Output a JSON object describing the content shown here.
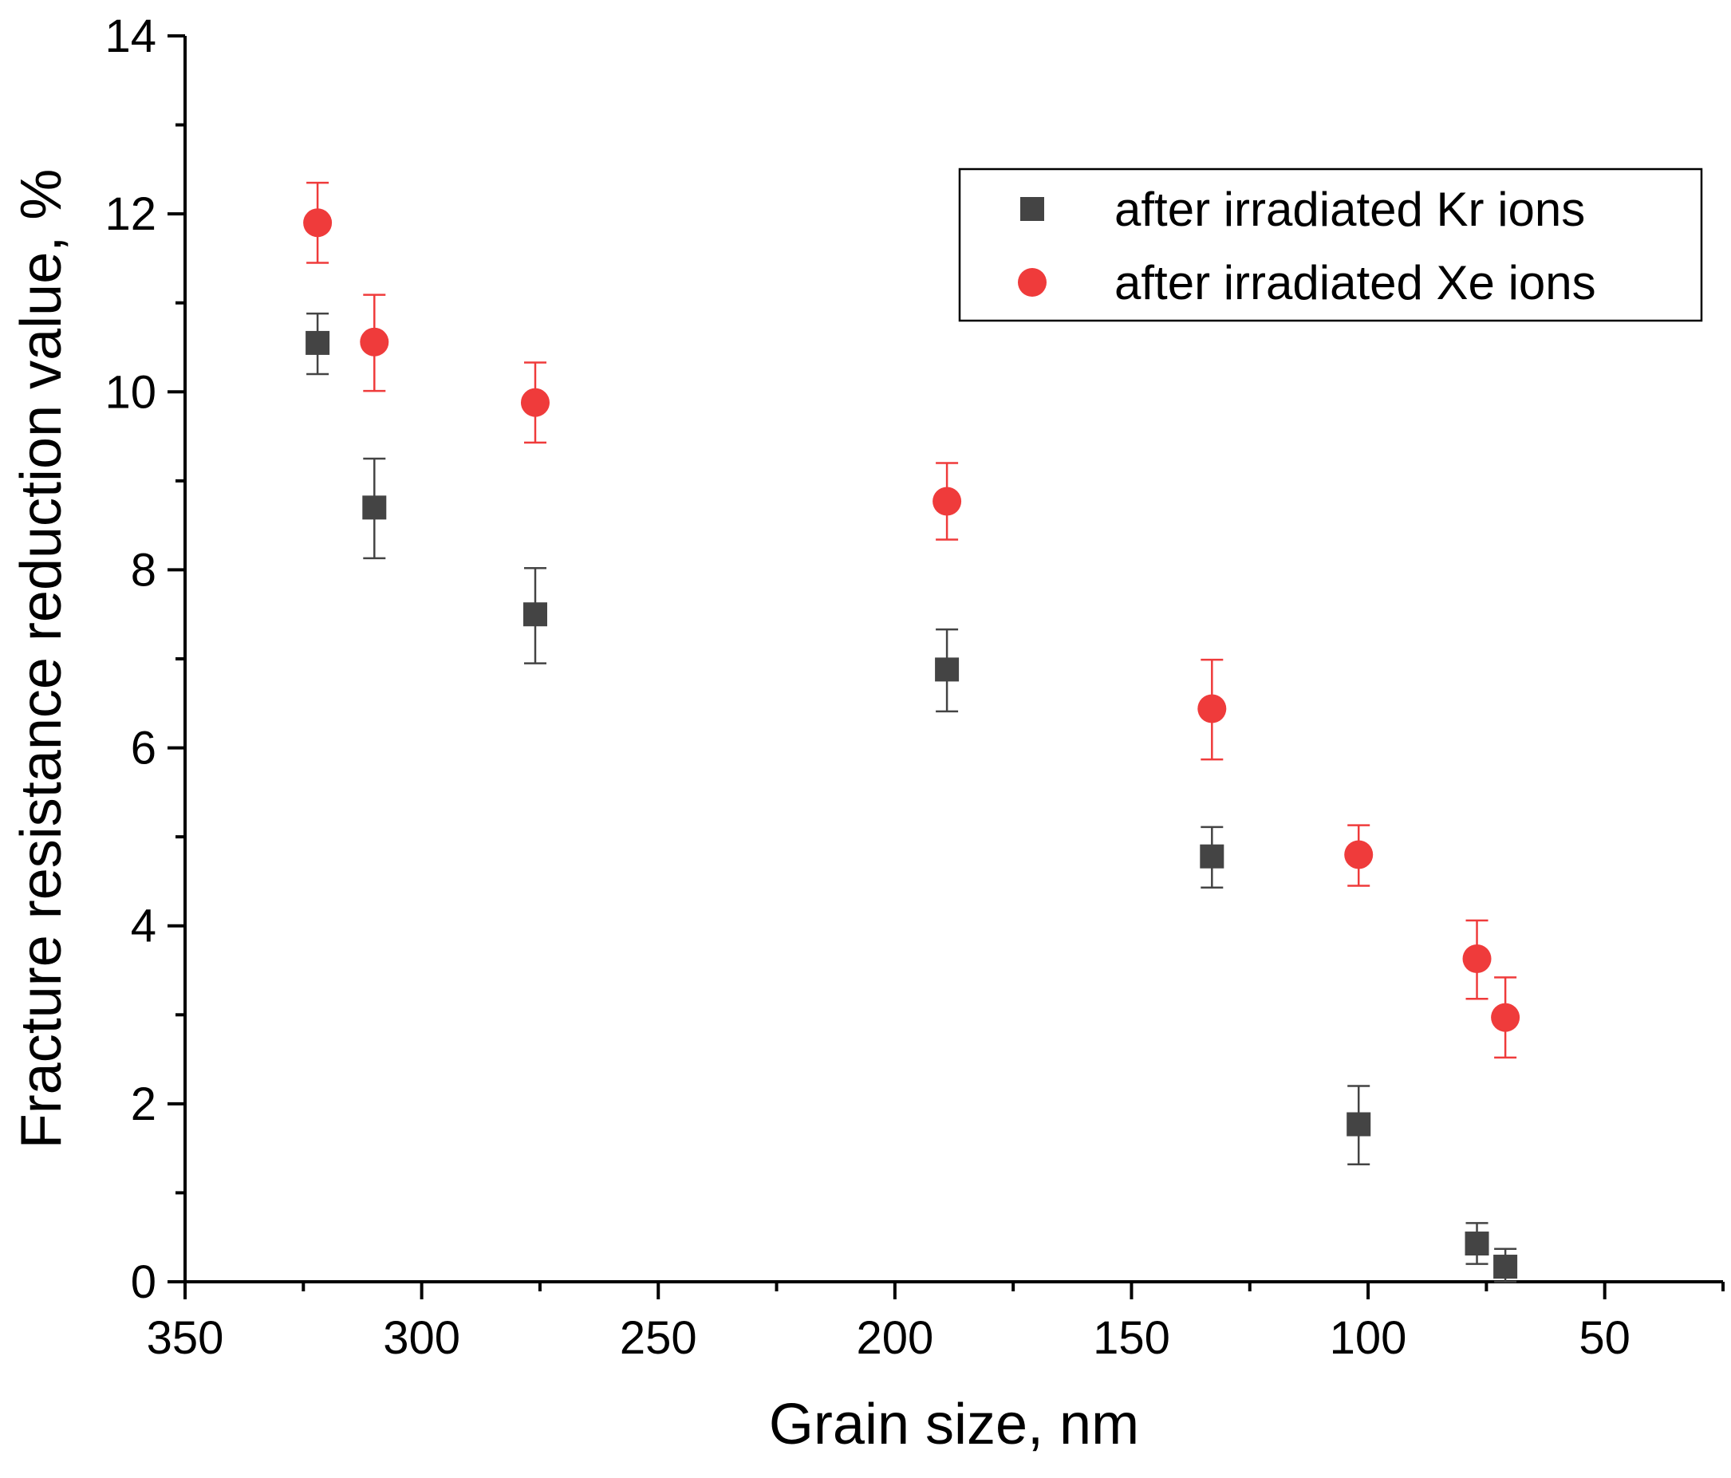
{
  "chart_data": {
    "type": "scatter",
    "title": "",
    "xlabel": "Grain size, nm",
    "ylabel": "Fracture resistance reduction value, %",
    "xlim": [
      350,
      25
    ],
    "ylim": [
      0,
      14
    ],
    "x_reversed": true,
    "xticks": [
      350,
      300,
      250,
      200,
      150,
      100,
      50
    ],
    "xtick_labels": [
      "350",
      "300",
      "250",
      "200",
      "150",
      "100",
      "50"
    ],
    "x_minor_ticks": [
      325,
      275,
      225,
      175,
      125,
      75,
      25
    ],
    "yticks": [
      0,
      2,
      4,
      6,
      8,
      10,
      12,
      14
    ],
    "ytick_labels": [
      "0",
      "2",
      "4",
      "6",
      "8",
      "10",
      "12",
      "14"
    ],
    "y_minor_ticks": [
      1,
      3,
      5,
      7,
      9,
      11,
      13
    ],
    "grid": false,
    "legend_position": "top-right",
    "series": [
      {
        "name": "after irradiated Kr ions",
        "marker": "square",
        "color": "#444444",
        "x": [
          322,
          310,
          276,
          189,
          133,
          102,
          77,
          71
        ],
        "y": [
          10.55,
          8.7,
          7.5,
          6.88,
          4.78,
          1.77,
          0.43,
          0.17
        ],
        "err_up": [
          0.33,
          0.55,
          0.52,
          0.45,
          0.33,
          0.43,
          0.23,
          0.2
        ],
        "err_down": [
          0.35,
          0.57,
          0.55,
          0.47,
          0.35,
          0.45,
          0.23,
          0.17
        ]
      },
      {
        "name": "after irradiated Xe ions",
        "marker": "circle",
        "color": "#ef3b3b",
        "x": [
          322,
          310,
          276,
          189,
          133,
          102,
          77,
          71
        ],
        "y": [
          11.9,
          10.56,
          9.88,
          8.77,
          6.44,
          4.8,
          3.63,
          2.97
        ],
        "err_up": [
          0.45,
          0.53,
          0.45,
          0.43,
          0.55,
          0.33,
          0.43,
          0.45
        ],
        "err_down": [
          0.45,
          0.55,
          0.45,
          0.43,
          0.57,
          0.35,
          0.45,
          0.45
        ]
      }
    ]
  }
}
